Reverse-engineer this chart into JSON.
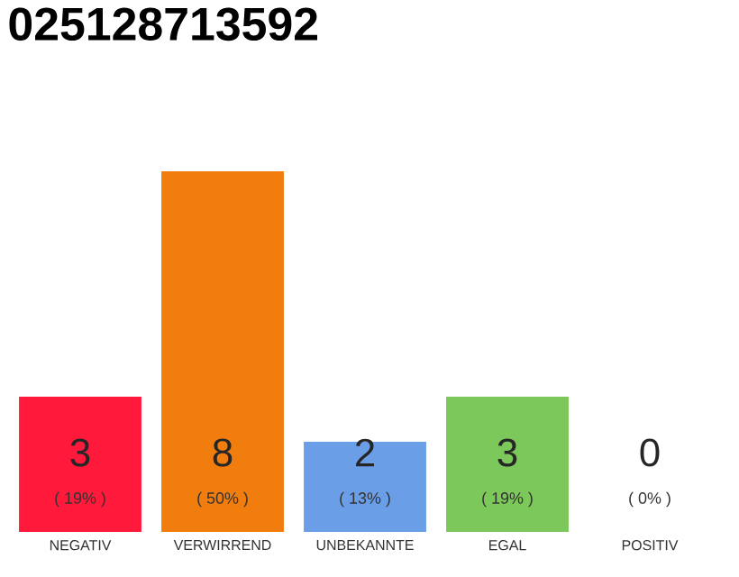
{
  "chart_data": {
    "type": "bar",
    "title": "025128713592",
    "categories": [
      "NEGATIV",
      "VERWIRREND",
      "UNBEKANNTE",
      "EGAL",
      "POSITIV"
    ],
    "values": [
      3,
      8,
      2,
      3,
      0
    ],
    "colors": [
      "#ff1a3c",
      "#f07d0e",
      "#6a9fe8",
      "#7dc85a",
      "#d0d0d0"
    ],
    "data_labels": true,
    "annotations": [
      "( 19% )",
      "( 50% )",
      "( 13% )",
      "( 19% )",
      "( 0% )"
    ]
  }
}
